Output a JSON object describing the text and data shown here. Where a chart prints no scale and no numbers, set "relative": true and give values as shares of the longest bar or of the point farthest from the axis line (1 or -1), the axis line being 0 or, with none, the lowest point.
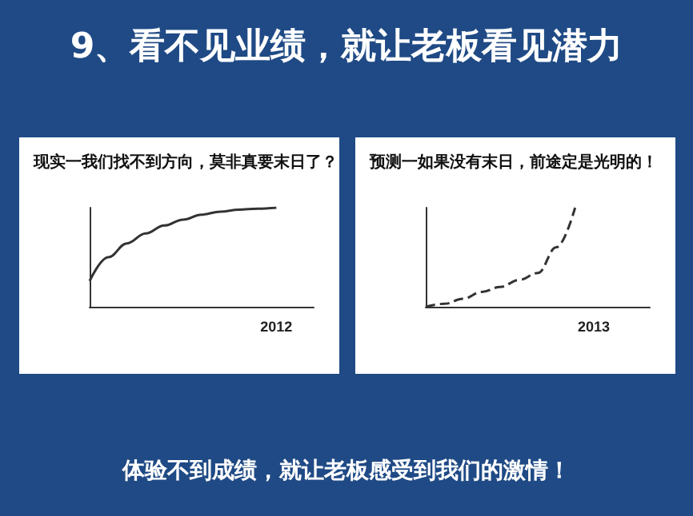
{
  "chart_data": [
    {
      "type": "line",
      "title": "现实一我们找不到方向，莫非真要末日了？",
      "annotations": [
        "9、看不见业绩，就让老板看见潜力",
        "体验不到成绩，就让老板感受到我们的激情！",
        "2012"
      ],
      "categories": [
        null,
        null,
        null,
        null,
        null,
        null,
        null,
        null,
        null,
        null,
        null,
        null,
        null
      ],
      "relative": true,
      "series": [
        {
          "color": "#333333",
          "values": [
            0.26,
            0.5,
            0.64,
            0.74,
            0.82,
            0.88,
            0.93,
            0.96,
            0.98,
            0.99,
            1.0,
            null,
            null
          ]
        }
      ],
      "line_style": "solid",
      "marker": "none",
      "grid": false
    },
    {
      "type": "line",
      "title": "预测一如果没有末日，前途定是光明的！",
      "annotations": [
        "2013"
      ],
      "categories": [
        null,
        null,
        null,
        null,
        null,
        null,
        null,
        null,
        null,
        null,
        null,
        null,
        null
      ],
      "relative": true,
      "series": [
        {
          "color": "#333333",
          "values": [
            0,
            0.03,
            0.08,
            0.15,
            0.2,
            0.27,
            0.34,
            0.6,
            1.0,
            null,
            null,
            null,
            null
          ]
        }
      ],
      "line_style": "dashed",
      "marker": "none",
      "grid": false
    }
  ]
}
